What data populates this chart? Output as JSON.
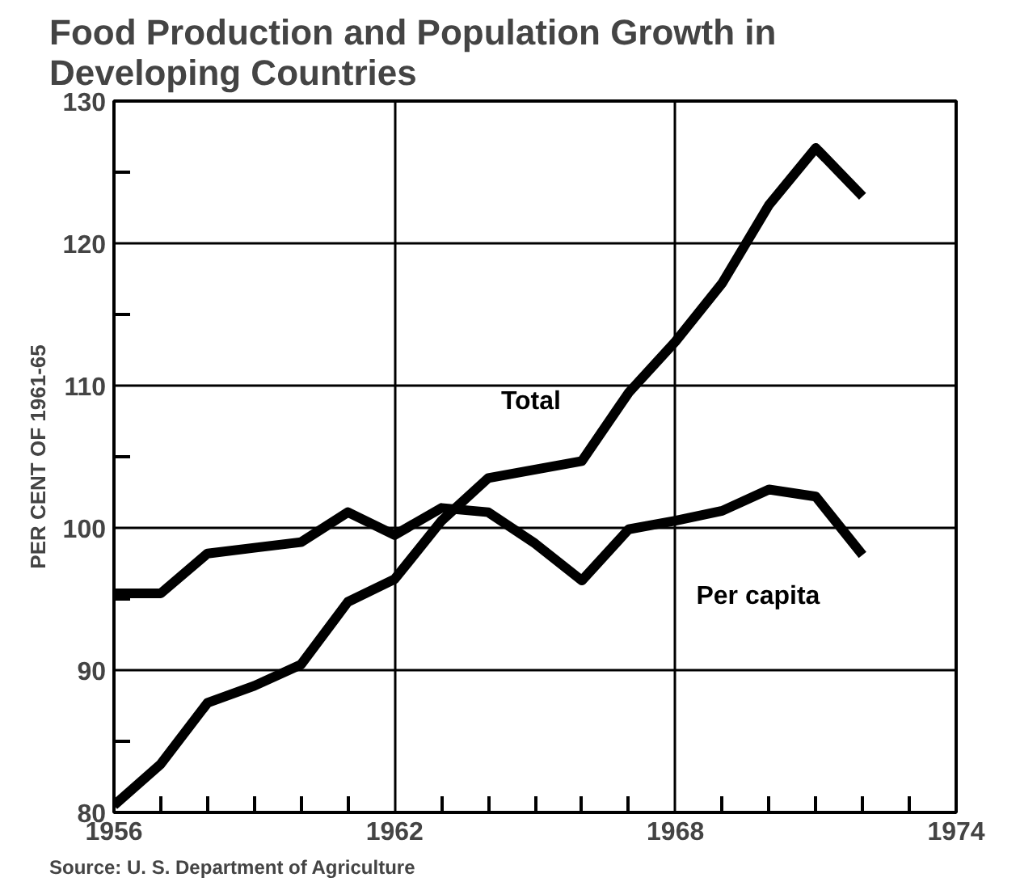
{
  "chart_data": {
    "type": "line",
    "title": "Food Production and Population Growth in Developing Countries",
    "ylabel": "PER CENT OF 1961-65",
    "x": [
      1956,
      1957,
      1958,
      1959,
      1960,
      1961,
      1962,
      1963,
      1964,
      1965,
      1966,
      1967,
      1968,
      1969,
      1970,
      1971,
      1972
    ],
    "series": [
      {
        "name": "Total",
        "color": "#000000",
        "values": [
          80.5,
          83.4,
          87.7,
          88.9,
          90.4,
          94.8,
          96.4,
          100.5,
          103.5,
          104.1,
          104.7,
          109.5,
          113.1,
          117.2,
          122.7,
          126.7,
          123.3
        ]
      },
      {
        "name": "Per capita",
        "color": "#000000",
        "values": [
          95.4,
          95.4,
          98.2,
          98.6,
          99.0,
          101.1,
          99.5,
          101.4,
          101.1,
          98.9,
          96.3,
          99.9,
          100.5,
          101.2,
          102.7,
          102.2,
          98.1
        ]
      }
    ],
    "xlim": [
      1956,
      1974
    ],
    "xticks": [
      1956,
      {
        "value": 1957,
        "label": null
      },
      {
        "value": 1958,
        "label": null
      },
      {
        "value": 1959,
        "label": null
      },
      {
        "value": 1960,
        "label": null
      },
      {
        "value": 1961,
        "label": null
      },
      1962,
      {
        "value": 1963,
        "label": null
      },
      {
        "value": 1964,
        "label": null
      },
      {
        "value": 1965,
        "label": null
      },
      {
        "value": 1966,
        "label": null
      },
      {
        "value": 1967,
        "label": null
      },
      1968,
      {
        "value": 1969,
        "label": null
      },
      {
        "value": 1970,
        "label": null
      },
      {
        "value": 1971,
        "label": null
      },
      {
        "value": 1972,
        "label": null
      },
      {
        "value": 1973,
        "label": null
      },
      1974
    ],
    "ylim": [
      80,
      130
    ],
    "yticks": [
      80,
      {
        "value": 85,
        "label": null
      },
      90,
      {
        "value": 95,
        "label": null
      },
      100,
      {
        "value": 105,
        "label": null
      },
      110,
      {
        "value": 115,
        "label": null
      },
      120,
      {
        "value": 125,
        "label": null
      },
      130
    ],
    "grid": true,
    "legend": false,
    "marker": "none",
    "line_style": "solid",
    "annotations": [
      "Source: U. S. Department of Agriculture"
    ]
  }
}
